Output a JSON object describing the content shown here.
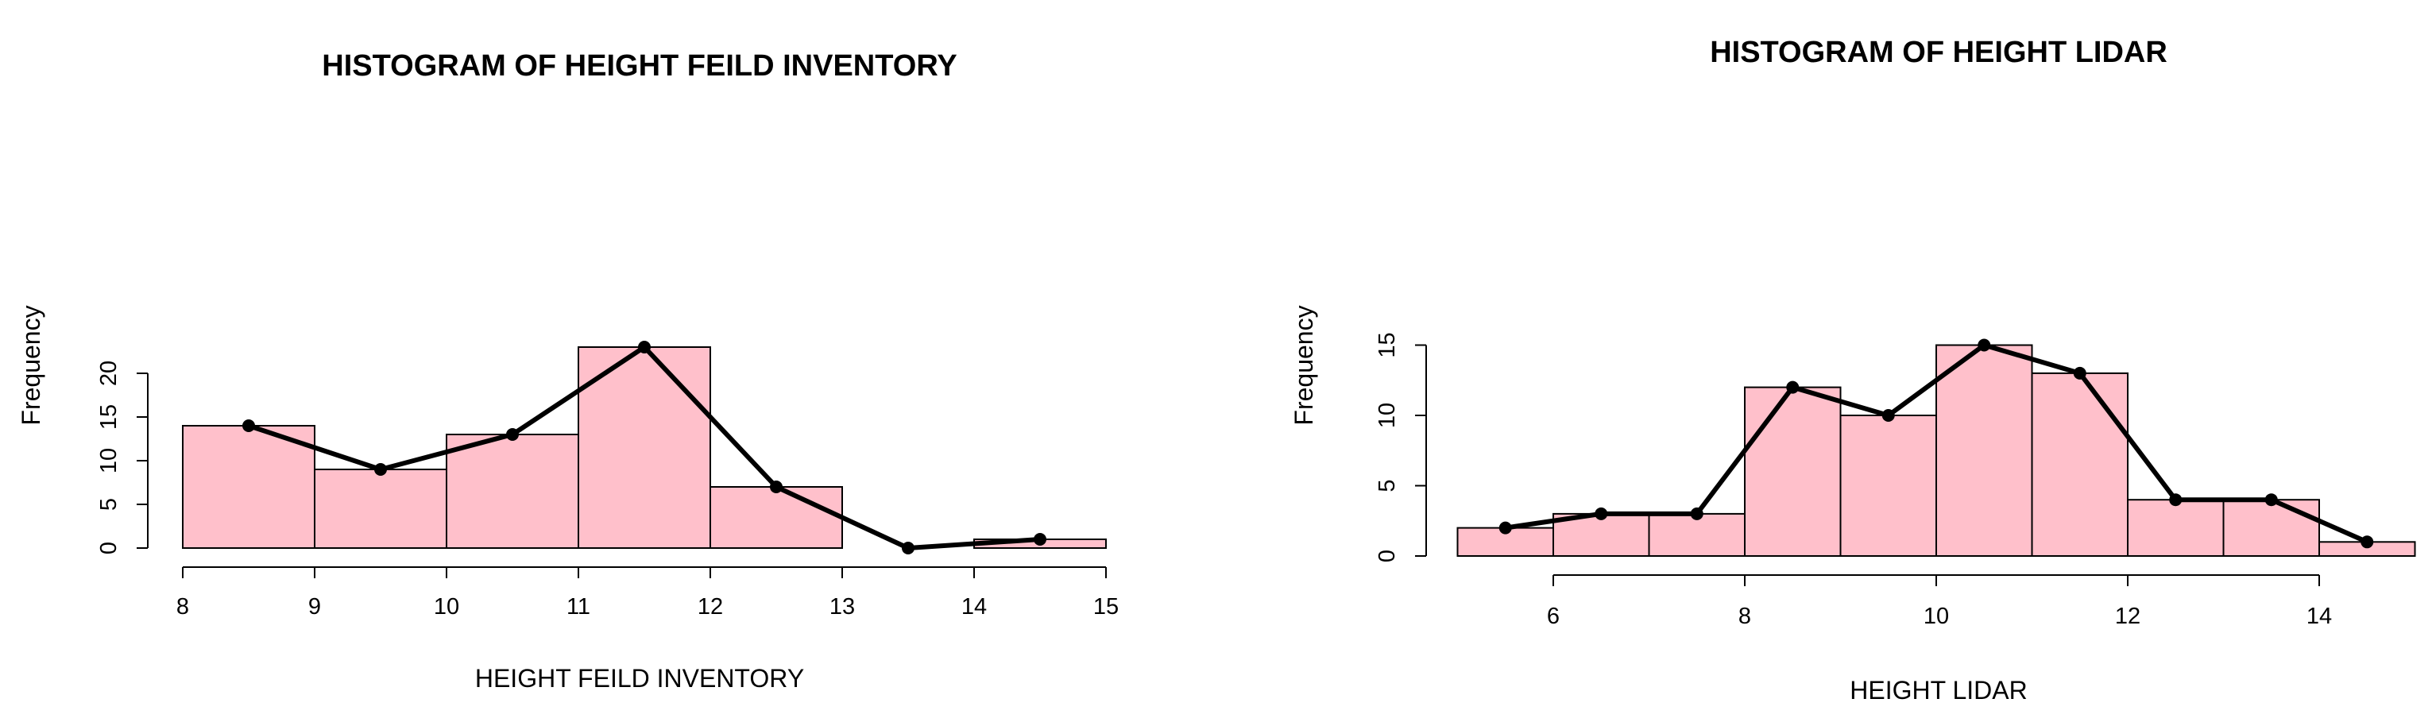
{
  "chart_data": [
    {
      "type": "bar",
      "subtype": "histogram-with-frequency-polygon",
      "title": "HISTOGRAM OF HEIGHT FEILD INVENTORY",
      "xlabel": "HEIGHT FEILD INVENTORY",
      "ylabel": "Frequency",
      "bin_edges": [
        8,
        9,
        10,
        11,
        12,
        13,
        14,
        15
      ],
      "values": [
        14,
        9,
        13,
        23,
        7,
        0,
        1
      ],
      "polygon_x": [
        8.5,
        9.5,
        10.5,
        11.5,
        12.5,
        13.5,
        14.5
      ],
      "polygon_y": [
        14,
        9,
        13,
        23,
        7,
        0,
        1
      ],
      "xlim": [
        8,
        15
      ],
      "ylim": [
        0,
        23
      ],
      "x_ticks": [
        8,
        9,
        10,
        11,
        12,
        13,
        14,
        15
      ],
      "y_ticks": [
        0,
        5,
        10,
        15,
        20
      ],
      "bar_color": "#FFC0CB",
      "line_color": "#000000",
      "grid": false
    },
    {
      "type": "bar",
      "subtype": "histogram-with-frequency-polygon",
      "title": "HISTOGRAM OF HEIGHT LIDAR",
      "xlabel": "HEIGHT LIDAR",
      "ylabel": "Frequency",
      "bin_edges": [
        5,
        6,
        7,
        8,
        9,
        10,
        11,
        12,
        13,
        14,
        15
      ],
      "values": [
        2,
        3,
        3,
        12,
        10,
        15,
        13,
        4,
        4,
        1
      ],
      "polygon_x": [
        5.5,
        6.5,
        7.5,
        8.5,
        9.5,
        10.5,
        11.5,
        12.5,
        13.5,
        14.5
      ],
      "polygon_y": [
        2,
        3,
        3,
        12,
        10,
        15,
        13,
        4,
        4,
        1
      ],
      "xlim": [
        6,
        14
      ],
      "ylim": [
        0,
        15
      ],
      "x_ticks": [
        6,
        8,
        10,
        12,
        14
      ],
      "y_ticks": [
        0,
        5,
        10,
        15
      ],
      "bar_color": "#FFC0CB",
      "line_color": "#000000",
      "grid": false
    }
  ]
}
